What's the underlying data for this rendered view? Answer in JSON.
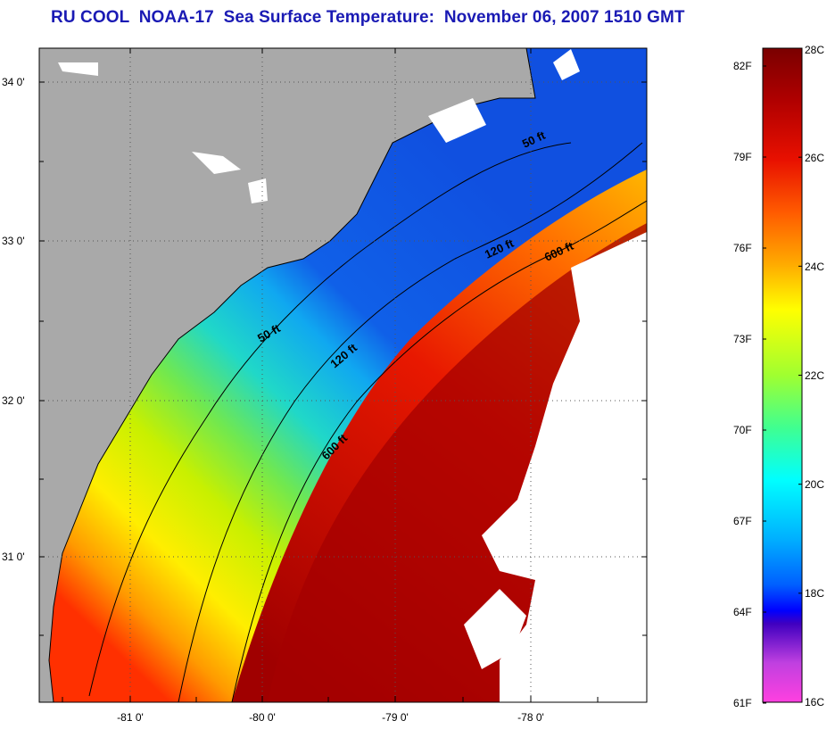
{
  "title": "RU COOL  NOAA-17  Sea Surface Temperature:  November 06, 2007 1510 GMT",
  "map": {
    "lat_labels": [
      "34 0'",
      "33 0'",
      "32 0'",
      "31 0'"
    ],
    "lon_labels": [
      "-81 0'",
      "-80 0'",
      "-79 0'",
      "-78 0'"
    ],
    "contours": [
      "50 ft",
      "50 ft",
      "120 ft",
      "120 ft",
      "600 ft",
      "600 ft"
    ]
  },
  "colorbar": {
    "fahrenheit": [
      "82F",
      "79F",
      "76F",
      "73F",
      "70F",
      "67F",
      "64F",
      "61F"
    ],
    "celsius": [
      "28C",
      "26C",
      "24C",
      "22C",
      "20C",
      "18C",
      "16C"
    ],
    "range_c": [
      16,
      28
    ]
  },
  "colors": {
    "land": "#a9a9a9",
    "cloud": "#ffffff",
    "title": "#1a1ab4"
  }
}
